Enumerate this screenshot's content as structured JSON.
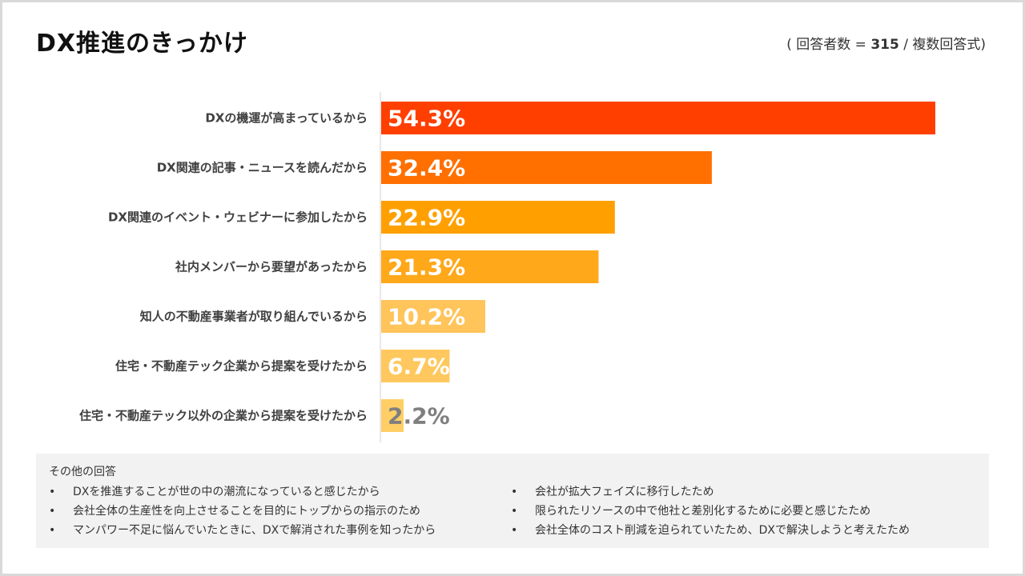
{
  "title": "DX推進のきっかけ",
  "note": {
    "prefix": "( 回答者数 = ",
    "count": "315",
    "suffix": " / 複数回答式)"
  },
  "colors": {
    "bar_1": "#ff3f00",
    "bar_2": "#ff7000",
    "bar_3": "#ffa000",
    "bar_4": "#ffa81a",
    "bar_5": "#ffc45a",
    "bar_6": "#ffc85e",
    "bar_7": "#ffcf66"
  },
  "chart_data": {
    "type": "bar",
    "orientation": "horizontal",
    "categories": [
      "DXの機運が高まっているから",
      "DX関連の記事・ニュースを読んだから",
      "DX関連のイベント・ウェビナーに参加したから",
      "社内メンバーから要望があったから",
      "知人の不動産事業者が取り組んでいるから",
      "住宅・不動産テック企業から提案を受けたから",
      "住宅・不動産テック以外の企業から提案を受けたから"
    ],
    "values": [
      54.3,
      32.4,
      22.9,
      21.3,
      10.2,
      6.7,
      2.2
    ],
    "value_labels": [
      "54.3%",
      "32.4%",
      "22.9%",
      "21.3%",
      "10.2%",
      "6.7%",
      "2.2%"
    ],
    "bar_colors": [
      "#ff3f00",
      "#ff7000",
      "#ffa000",
      "#ffa81a",
      "#ffc45a",
      "#ffc85e",
      "#ffcf66"
    ],
    "xlim": [
      0,
      60
    ],
    "grid": false,
    "legend": "none"
  },
  "others": {
    "heading": "その他の回答",
    "left": [
      "DXを推進することが世の中の潮流になっていると感じたから",
      "会社全体の生産性を向上させることを目的にトップからの指示のため",
      "マンパワー不足に悩んでいたときに、DXで解消された事例を知ったから"
    ],
    "right": [
      "会社が拡大フェイズに移行したため",
      "限られたリソースの中で他社と差別化するために必要と感じたため",
      "会社全体のコスト削減を迫られていたため、DXで解決しようと考えたため"
    ]
  }
}
